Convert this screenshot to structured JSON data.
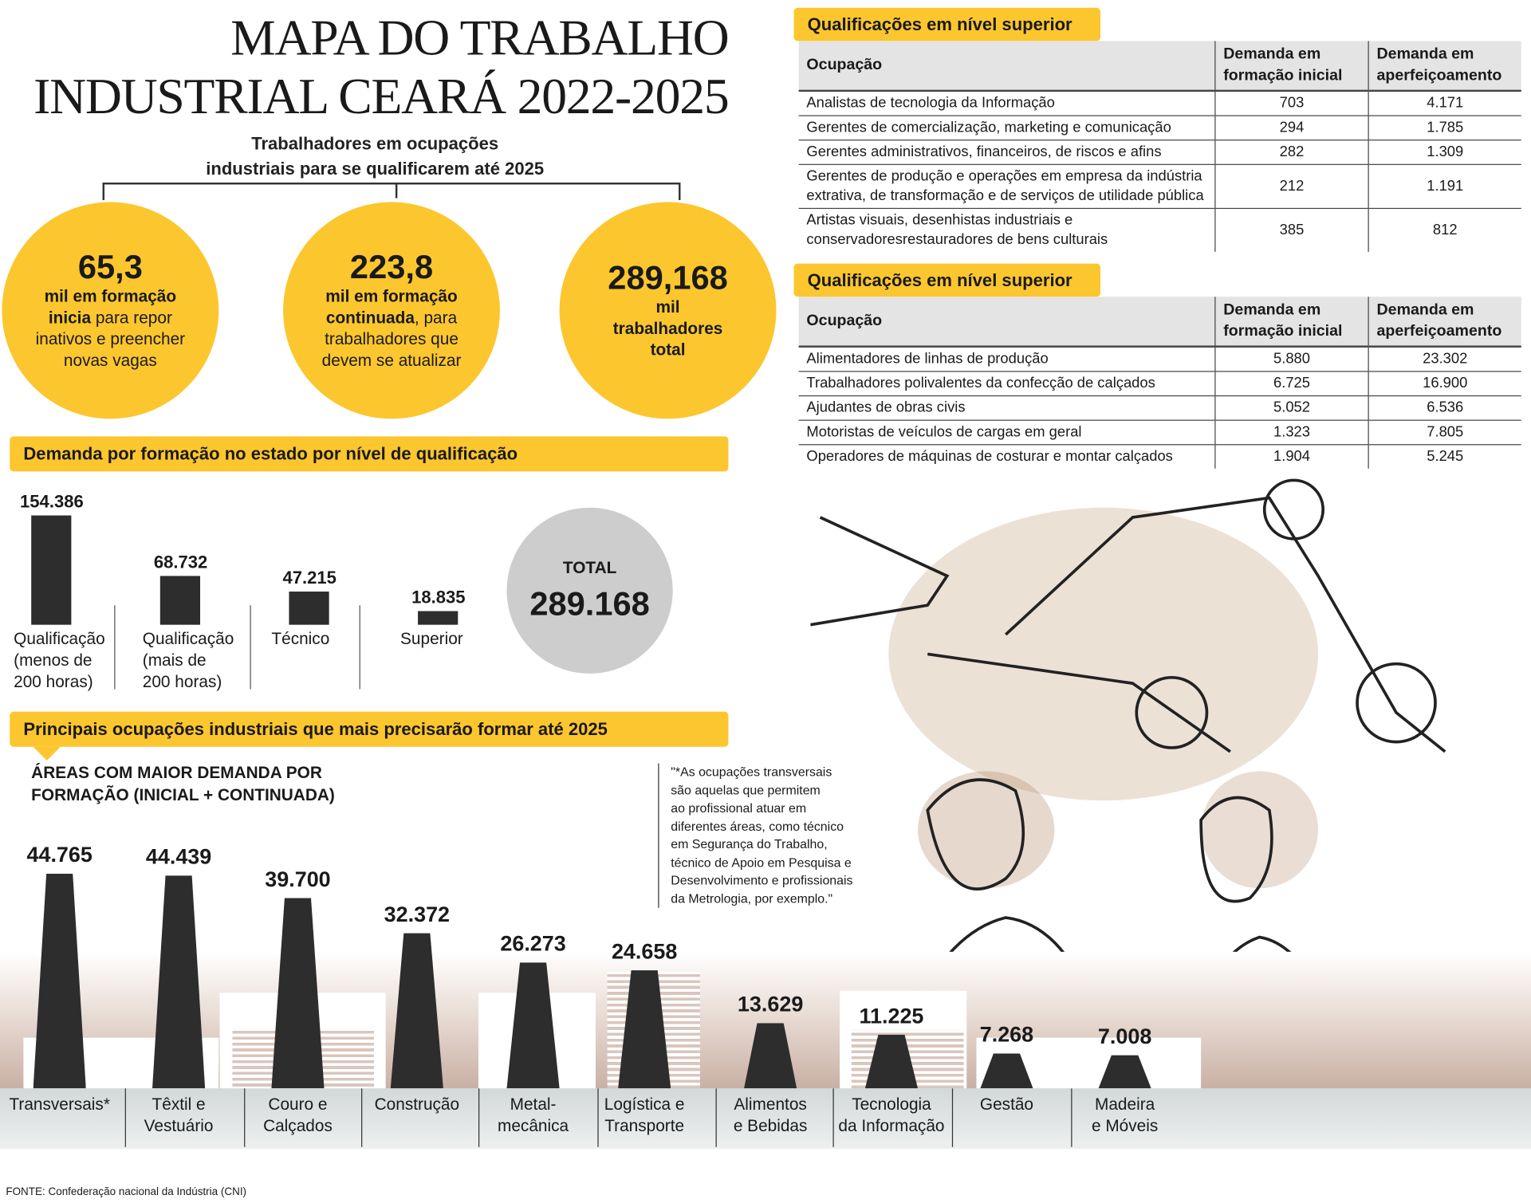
{
  "title": {
    "line1": "MAPA DO TRABALHO",
    "line2": "INDUSTRIAL CEARÁ 2022-2025"
  },
  "subtitle": {
    "line1": "Trabalhadores em ocupações",
    "line2": "industriais para se qualificarem até 2025"
  },
  "circles": [
    {
      "big": "65,3",
      "bold": "mil em formação inicia",
      "rest": " para repor inativos e preencher novas vagas"
    },
    {
      "big": "223,8",
      "bold": "mil em formação continuada",
      "rest": ", para trabalhadores que devem se atualizar"
    },
    {
      "big": "289,168",
      "bold": "mil trabalhadores total",
      "rest": ""
    }
  ],
  "demand_section": {
    "banner": "Demanda por formação no estado por nível de qualificação",
    "total_label": "TOTAL",
    "total_value": "289.168"
  },
  "occupations_section": {
    "banner": "Principais ocupações industriais que mais precisarão formar até 2025",
    "subheading_line1": "ÁREAS COM MAIOR DEMANDA POR",
    "subheading_line2": "FORMAÇÃO (INICIAL + CONTINUADA)"
  },
  "note": [
    "\"*As ocupações transversais",
    "são aquelas que permitem",
    "ao profissional atuar em",
    "diferentes áreas, como técnico",
    "em Segurança do Trabalho,",
    "técnico de Apoio em Pesquisa e",
    "Desenvolvimento e profissionais",
    "da Metrologia, por exemplo.\""
  ],
  "footer": "FONTE: Confederação nacional da Indústria (CNI)",
  "tables": [
    {
      "banner": "Qualificações em nível superior",
      "headers": [
        "Ocupação",
        "Demanda em formação inicial",
        "Demanda em aperfeiçoamento"
      ],
      "rows": [
        [
          "Analistas de tecnologia da Informação",
          "703",
          "4.171"
        ],
        [
          "Gerentes de comercialização, marketing e comunicação",
          "294",
          "1.785"
        ],
        [
          "Gerentes administrativos, financeiros, de riscos e afins",
          "282",
          "1.309"
        ],
        [
          "Gerentes de produção e operações em empresa da indústria extrativa, de transformação e de serviços de utilidade pública",
          "212",
          "1.191"
        ],
        [
          "Artistas visuais, desenhistas industriais e conservadoresrestauradores de bens culturais",
          "385",
          "812"
        ]
      ]
    },
    {
      "banner": "Qualificações em nível superior",
      "headers": [
        "Ocupação",
        "Demanda em formação inicial",
        "Demanda em aperfeiçoamento"
      ],
      "rows": [
        [
          "Alimentadores de linhas de produção",
          "5.880",
          "23.302"
        ],
        [
          "Trabalhadores polivalentes da confecção de calçados",
          "6.725",
          "16.900"
        ],
        [
          "Ajudantes de obras civis",
          "5.052",
          "6.536"
        ],
        [
          "Motoristas de veículos de cargas em geral",
          "1.323",
          "7.805"
        ],
        [
          "Operadores de máquinas de costurar e montar calçados",
          "1.904",
          "5.245"
        ]
      ]
    }
  ],
  "chart_data": [
    {
      "type": "bar",
      "title": "Demanda por formação no estado por nível de qualificação",
      "categories": [
        "Qualificação (menos de 200 horas)",
        "Qualificação (mais de 200 horas)",
        "Técnico",
        "Superior"
      ],
      "category_lines": [
        [
          "Qualificação",
          "(menos de",
          "200 horas)"
        ],
        [
          "Qualificação",
          "(mais de",
          "200 horas)"
        ],
        [
          "Técnico"
        ],
        [
          "Superior"
        ]
      ],
      "values": [
        154386,
        68732,
        47215,
        18835
      ],
      "labels": [
        "154.386",
        "68.732",
        "47.215",
        "18.835"
      ]
    },
    {
      "type": "bar",
      "title": "Áreas com maior demanda por formação (inicial + continuada)",
      "categories": [
        "Transversais*",
        "Têxtil e Vestuário",
        "Couro e Calçados",
        "Construção",
        "Metal-mecânica",
        "Logística e Transporte",
        "Alimentos e Bebidas",
        "Tecnologia da Informação",
        "Gestão",
        "Madeira e Móveis"
      ],
      "category_lines": [
        [
          "Transversais*"
        ],
        [
          "Têxtil e",
          "Vestuário"
        ],
        [
          "Couro e",
          "Calçados"
        ],
        [
          "Construção"
        ],
        [
          "Metal-",
          "mecânica"
        ],
        [
          "Logística e",
          "Transporte"
        ],
        [
          "Alimentos",
          "e Bebidas"
        ],
        [
          "Tecnologia",
          "da Informação"
        ],
        [
          "Gestão"
        ],
        [
          "Madeira",
          "e Móveis"
        ]
      ],
      "values": [
        44765,
        44439,
        39700,
        32372,
        26273,
        24658,
        13629,
        11225,
        7268,
        7008
      ],
      "labels": [
        "44.765",
        "44.439",
        "39.700",
        "32.372",
        "26.273",
        "24.658",
        "13.629",
        "11.225",
        "7.268",
        "7.008"
      ]
    }
  ],
  "colors": {
    "accent": "#fcc62f",
    "bar": "#2d2d2d",
    "total_circle": "#cdcdcd"
  }
}
